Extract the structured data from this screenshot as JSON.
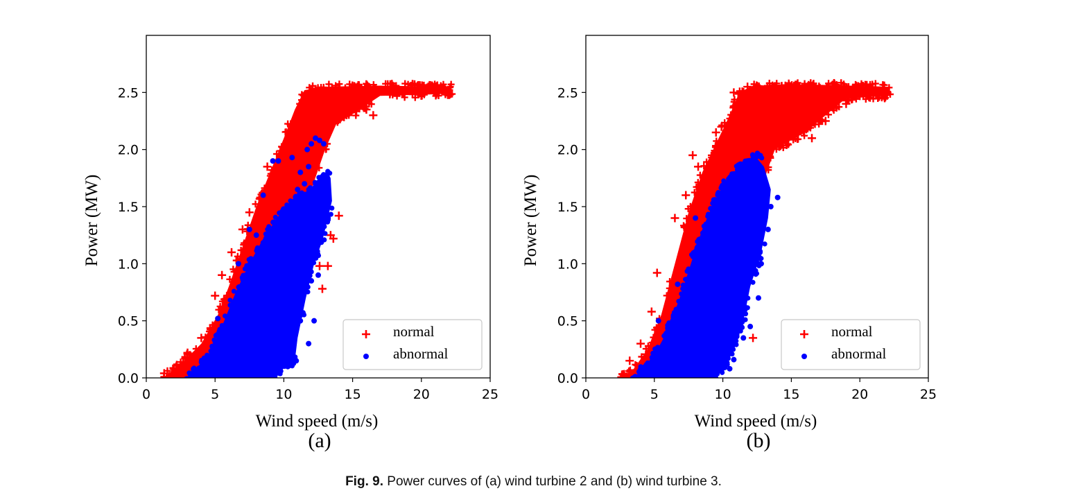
{
  "caption": {
    "fig_label": "Fig. 9.",
    "text": "Power curves of (a) wind turbine 2 and (b) wind turbine 3."
  },
  "colors": {
    "normal": "#ff0000",
    "abnormal": "#0000ff"
  },
  "chart_data": [
    {
      "type": "scatter",
      "panel_label": "(a)",
      "title": "",
      "xlabel": "Wind speed (m/s)",
      "ylabel": "Power (MW)",
      "xlim": [
        0,
        25
      ],
      "ylim": [
        0,
        3.0
      ],
      "xticks": [
        "0",
        "5",
        "10",
        "15",
        "20",
        "25"
      ],
      "yticks": [
        "0.0",
        "0.5",
        "1.0",
        "1.5",
        "2.0",
        "2.5"
      ],
      "legend_placement": "bottom-right",
      "series": [
        {
          "name": "normal",
          "marker": "+",
          "band_lower": [
            [
              3.0,
              0.0
            ],
            [
              5.0,
              0.12
            ],
            [
              6.5,
              0.35
            ],
            [
              8.0,
              0.6
            ],
            [
              9.5,
              1.0
            ],
            [
              10.5,
              1.3
            ],
            [
              12.0,
              1.65
            ],
            [
              13.0,
              2.0
            ],
            [
              13.8,
              2.22
            ],
            [
              15.5,
              2.35
            ],
            [
              17.0,
              2.47
            ],
            [
              20.0,
              2.48
            ],
            [
              22.2,
              2.49
            ]
          ],
          "band_upper": [
            [
              1.2,
              0.0
            ],
            [
              2.5,
              0.12
            ],
            [
              4.0,
              0.3
            ],
            [
              5.2,
              0.55
            ],
            [
              6.0,
              0.8
            ],
            [
              7.0,
              1.15
            ],
            [
              8.0,
              1.5
            ],
            [
              9.0,
              1.8
            ],
            [
              10.0,
              2.1
            ],
            [
              10.8,
              2.35
            ],
            [
              11.5,
              2.52
            ],
            [
              13.0,
              2.55
            ],
            [
              17.0,
              2.56
            ],
            [
              22.2,
              2.55
            ]
          ],
          "points": [
            [
              1.3,
              0.04
            ],
            [
              2.0,
              0.08
            ],
            [
              3.0,
              0.22
            ],
            [
              4.0,
              0.35
            ],
            [
              5.0,
              0.72
            ],
            [
              5.5,
              0.9
            ],
            [
              6.2,
              1.1
            ],
            [
              7.0,
              1.3
            ],
            [
              7.5,
              1.45
            ],
            [
              8.3,
              1.58
            ],
            [
              8.8,
              1.85
            ],
            [
              9.2,
              1.7
            ],
            [
              10.5,
              2.22
            ],
            [
              11.2,
              2.4
            ],
            [
              12.0,
              2.5
            ],
            [
              13.5,
              2.54
            ],
            [
              16.0,
              2.35
            ],
            [
              16.5,
              2.3
            ],
            [
              13.6,
              1.22
            ],
            [
              13.4,
              1.25
            ],
            [
              12.6,
              0.98
            ],
            [
              12.8,
              0.78
            ],
            [
              13.2,
              0.98
            ],
            [
              14.0,
              1.42
            ],
            [
              20.5,
              2.55
            ],
            [
              22.0,
              2.52
            ]
          ]
        },
        {
          "name": "abnormal",
          "marker": "o",
          "band_lower": [
            [
              3.0,
              0.0
            ],
            [
              9.0,
              0.0
            ],
            [
              10.8,
              0.15
            ],
            [
              11.0,
              0.35
            ],
            [
              11.6,
              0.7
            ],
            [
              12.2,
              1.0
            ],
            [
              12.8,
              1.2
            ],
            [
              13.5,
              1.55
            ],
            [
              13.4,
              1.75
            ]
          ],
          "band_upper": [
            [
              3.0,
              0.0
            ],
            [
              4.5,
              0.2
            ],
            [
              5.5,
              0.45
            ],
            [
              6.5,
              0.75
            ],
            [
              7.5,
              1.0
            ],
            [
              8.5,
              1.22
            ],
            [
              9.5,
              1.4
            ],
            [
              10.5,
              1.55
            ],
            [
              11.5,
              1.62
            ],
            [
              12.3,
              1.7
            ],
            [
              13.2,
              1.8
            ]
          ],
          "points": [
            [
              5.2,
              0.52
            ],
            [
              6.7,
              1.0
            ],
            [
              7.5,
              1.3
            ],
            [
              8.0,
              1.25
            ],
            [
              8.5,
              1.6
            ],
            [
              9.2,
              1.9
            ],
            [
              9.6,
              1.9
            ],
            [
              10.6,
              1.93
            ],
            [
              11.0,
              1.65
            ],
            [
              11.2,
              1.8
            ],
            [
              11.5,
              1.7
            ],
            [
              11.8,
              1.85
            ],
            [
              11.7,
              2.0
            ],
            [
              12.0,
              2.05
            ],
            [
              12.3,
              2.1
            ],
            [
              12.6,
              2.08
            ],
            [
              12.9,
              2.05
            ],
            [
              11.5,
              1.3
            ],
            [
              12.0,
              0.85
            ],
            [
              12.5,
              0.9
            ],
            [
              12.2,
              0.5
            ],
            [
              11.8,
              0.3
            ],
            [
              10.9,
              0.15
            ],
            [
              11.2,
              0.5
            ]
          ]
        }
      ]
    },
    {
      "type": "scatter",
      "panel_label": "(b)",
      "title": "",
      "xlabel": "Wind speed (m/s)",
      "ylabel": "Power (MW)",
      "xlim": [
        0,
        25
      ],
      "ylim": [
        0,
        3.0
      ],
      "xticks": [
        "0",
        "5",
        "10",
        "15",
        "20",
        "25"
      ],
      "yticks": [
        "0.0",
        "0.5",
        "1.0",
        "1.5",
        "2.0",
        "2.5"
      ],
      "legend_placement": "bottom-right",
      "series": [
        {
          "name": "normal",
          "marker": "+",
          "band_lower": [
            [
              4.0,
              0.0
            ],
            [
              6.0,
              0.12
            ],
            [
              7.5,
              0.3
            ],
            [
              9.0,
              0.55
            ],
            [
              10.5,
              0.9
            ],
            [
              11.5,
              1.2
            ],
            [
              12.5,
              1.5
            ],
            [
              13.2,
              1.8
            ],
            [
              13.8,
              2.0
            ],
            [
              14.5,
              2.05
            ],
            [
              16.0,
              2.15
            ],
            [
              17.5,
              2.3
            ],
            [
              19.0,
              2.45
            ],
            [
              22.2,
              2.47
            ]
          ],
          "band_upper": [
            [
              2.6,
              0.0
            ],
            [
              3.5,
              0.08
            ],
            [
              4.5,
              0.25
            ],
            [
              5.5,
              0.55
            ],
            [
              6.5,
              1.0
            ],
            [
              7.5,
              1.45
            ],
            [
              8.5,
              1.8
            ],
            [
              9.5,
              2.05
            ],
            [
              10.5,
              2.3
            ],
            [
              11.2,
              2.5
            ],
            [
              12.2,
              2.56
            ],
            [
              16.0,
              2.57
            ],
            [
              22.2,
              2.55
            ]
          ],
          "points": [
            [
              2.7,
              0.03
            ],
            [
              3.2,
              0.15
            ],
            [
              4.0,
              0.3
            ],
            [
              4.8,
              0.58
            ],
            [
              5.2,
              0.92
            ],
            [
              6.5,
              1.4
            ],
            [
              7.3,
              1.6
            ],
            [
              7.8,
              1.95
            ],
            [
              8.2,
              1.85
            ],
            [
              9.5,
              2.15
            ],
            [
              9.9,
              2.2
            ],
            [
              10.8,
              2.5
            ],
            [
              11.8,
              2.55
            ],
            [
              15.2,
              2.2
            ],
            [
              16.5,
              2.1
            ],
            [
              17.5,
              2.25
            ],
            [
              19.0,
              2.4
            ],
            [
              22.0,
              2.5
            ],
            [
              10.5,
              0.5
            ],
            [
              10.7,
              0.55
            ],
            [
              11.0,
              0.78
            ],
            [
              12.2,
              0.35
            ]
          ]
        },
        {
          "name": "abnormal",
          "marker": "o",
          "band_lower": [
            [
              3.5,
              0.0
            ],
            [
              9.5,
              0.0
            ],
            [
              10.2,
              0.1
            ],
            [
              11.0,
              0.3
            ],
            [
              11.5,
              0.5
            ],
            [
              12.0,
              0.8
            ],
            [
              12.8,
              1.1
            ],
            [
              13.3,
              1.4
            ],
            [
              13.5,
              1.65
            ],
            [
              13.0,
              1.85
            ]
          ],
          "band_upper": [
            [
              3.5,
              0.0
            ],
            [
              5.0,
              0.2
            ],
            [
              6.0,
              0.42
            ],
            [
              7.0,
              0.75
            ],
            [
              7.8,
              1.05
            ],
            [
              8.5,
              1.3
            ],
            [
              9.2,
              1.5
            ],
            [
              10.0,
              1.68
            ],
            [
              10.8,
              1.8
            ],
            [
              11.5,
              1.87
            ],
            [
              12.3,
              1.95
            ]
          ],
          "points": [
            [
              5.3,
              0.5
            ],
            [
              6.7,
              0.82
            ],
            [
              8.0,
              1.4
            ],
            [
              9.2,
              1.1
            ],
            [
              10.0,
              1.4
            ],
            [
              11.0,
              1.7
            ],
            [
              11.8,
              1.9
            ],
            [
              12.2,
              1.95
            ],
            [
              12.5,
              1.88
            ],
            [
              13.0,
              1.75
            ],
            [
              13.5,
              1.5
            ],
            [
              13.3,
              1.3
            ],
            [
              14.0,
              1.58
            ],
            [
              12.8,
              1.0
            ],
            [
              12.6,
              0.7
            ],
            [
              12.0,
              0.45
            ],
            [
              11.5,
              0.35
            ],
            [
              10.8,
              0.16
            ],
            [
              10.5,
              0.08
            ]
          ]
        }
      ]
    }
  ]
}
